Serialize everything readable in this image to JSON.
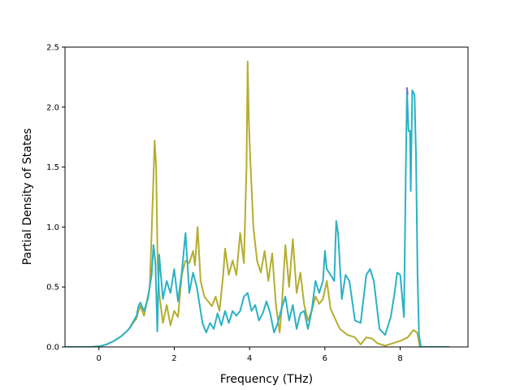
{
  "chart_data": {
    "type": "line",
    "title": "",
    "xlabel": "Frequency (THz)",
    "ylabel": "Partial Density of States",
    "xlim": [
      -0.9,
      9.8
    ],
    "ylim": [
      0.0,
      2.5
    ],
    "xticks": [
      0,
      2,
      4,
      6,
      8
    ],
    "yticks": [
      0.0,
      0.5,
      1.0,
      1.5,
      2.0,
      2.5
    ],
    "xtick_labels": [
      "0",
      "2",
      "4",
      "6",
      "8"
    ],
    "ytick_labels": [
      "0.0",
      "0.5",
      "1.0",
      "1.5",
      "2.0",
      "2.5"
    ],
    "grid": false,
    "legend": "none",
    "series": [
      {
        "color": "#b5ad2f",
        "points": [
          [
            -0.9,
            0.0
          ],
          [
            -0.2,
            0.0
          ],
          [
            0.0,
            0.005
          ],
          [
            0.2,
            0.02
          ],
          [
            0.4,
            0.05
          ],
          [
            0.6,
            0.09
          ],
          [
            0.8,
            0.15
          ],
          [
            1.0,
            0.24
          ],
          [
            1.05,
            0.3
          ],
          [
            1.1,
            0.34
          ],
          [
            1.2,
            0.26
          ],
          [
            1.3,
            0.42
          ],
          [
            1.35,
            0.5
          ],
          [
            1.4,
            0.95
          ],
          [
            1.45,
            1.42
          ],
          [
            1.48,
            1.72
          ],
          [
            1.52,
            1.5
          ],
          [
            1.56,
            0.7
          ],
          [
            1.6,
            0.45
          ],
          [
            1.7,
            0.2
          ],
          [
            1.8,
            0.35
          ],
          [
            1.9,
            0.18
          ],
          [
            2.0,
            0.3
          ],
          [
            2.1,
            0.25
          ],
          [
            2.2,
            0.6
          ],
          [
            2.3,
            0.72
          ],
          [
            2.4,
            0.7
          ],
          [
            2.5,
            0.8
          ],
          [
            2.55,
            0.68
          ],
          [
            2.62,
            1.0
          ],
          [
            2.7,
            0.55
          ],
          [
            2.8,
            0.42
          ],
          [
            2.9,
            0.38
          ],
          [
            3.0,
            0.34
          ],
          [
            3.1,
            0.42
          ],
          [
            3.2,
            0.3
          ],
          [
            3.3,
            0.6
          ],
          [
            3.35,
            0.82
          ],
          [
            3.45,
            0.6
          ],
          [
            3.55,
            0.72
          ],
          [
            3.65,
            0.6
          ],
          [
            3.75,
            0.95
          ],
          [
            3.85,
            0.7
          ],
          [
            3.92,
            1.5
          ],
          [
            3.95,
            2.38
          ],
          [
            3.98,
            1.9
          ],
          [
            4.02,
            1.55
          ],
          [
            4.05,
            1.35
          ],
          [
            4.1,
            1.0
          ],
          [
            4.2,
            0.72
          ],
          [
            4.3,
            0.62
          ],
          [
            4.4,
            0.8
          ],
          [
            4.5,
            0.55
          ],
          [
            4.6,
            0.78
          ],
          [
            4.7,
            0.35
          ],
          [
            4.8,
            0.12
          ],
          [
            4.85,
            0.3
          ],
          [
            4.95,
            0.85
          ],
          [
            5.05,
            0.5
          ],
          [
            5.15,
            0.9
          ],
          [
            5.25,
            0.45
          ],
          [
            5.35,
            0.62
          ],
          [
            5.45,
            0.35
          ],
          [
            5.55,
            0.22
          ],
          [
            5.65,
            0.3
          ],
          [
            5.75,
            0.42
          ],
          [
            5.85,
            0.36
          ],
          [
            5.95,
            0.4
          ],
          [
            6.05,
            0.55
          ],
          [
            6.15,
            0.32
          ],
          [
            6.25,
            0.25
          ],
          [
            6.4,
            0.15
          ],
          [
            6.6,
            0.1
          ],
          [
            6.8,
            0.08
          ],
          [
            6.95,
            0.02
          ],
          [
            7.1,
            0.08
          ],
          [
            7.25,
            0.07
          ],
          [
            7.4,
            0.03
          ],
          [
            7.6,
            0.01
          ],
          [
            7.8,
            0.03
          ],
          [
            8.0,
            0.05
          ],
          [
            8.2,
            0.08
          ],
          [
            8.35,
            0.14
          ],
          [
            8.45,
            0.12
          ],
          [
            8.52,
            0.0
          ],
          [
            9.3,
            0.0
          ]
        ]
      },
      {
        "color": "#2ab1c4",
        "points": [
          [
            -0.9,
            0.0
          ],
          [
            -0.2,
            0.0
          ],
          [
            0.0,
            0.005
          ],
          [
            0.2,
            0.02
          ],
          [
            0.4,
            0.05
          ],
          [
            0.6,
            0.09
          ],
          [
            0.8,
            0.15
          ],
          [
            1.0,
            0.26
          ],
          [
            1.05,
            0.34
          ],
          [
            1.1,
            0.37
          ],
          [
            1.2,
            0.3
          ],
          [
            1.3,
            0.4
          ],
          [
            1.4,
            0.6
          ],
          [
            1.45,
            0.85
          ],
          [
            1.5,
            0.7
          ],
          [
            1.55,
            0.13
          ],
          [
            1.6,
            0.77
          ],
          [
            1.7,
            0.4
          ],
          [
            1.8,
            0.55
          ],
          [
            1.9,
            0.45
          ],
          [
            2.0,
            0.65
          ],
          [
            2.1,
            0.38
          ],
          [
            2.2,
            0.62
          ],
          [
            2.3,
            0.95
          ],
          [
            2.4,
            0.45
          ],
          [
            2.5,
            0.62
          ],
          [
            2.6,
            0.5
          ],
          [
            2.7,
            0.3
          ],
          [
            2.75,
            0.2
          ],
          [
            2.85,
            0.12
          ],
          [
            2.95,
            0.2
          ],
          [
            3.05,
            0.15
          ],
          [
            3.15,
            0.28
          ],
          [
            3.25,
            0.18
          ],
          [
            3.35,
            0.3
          ],
          [
            3.45,
            0.2
          ],
          [
            3.55,
            0.3
          ],
          [
            3.65,
            0.26
          ],
          [
            3.75,
            0.3
          ],
          [
            3.85,
            0.42
          ],
          [
            3.95,
            0.45
          ],
          [
            4.05,
            0.3
          ],
          [
            4.15,
            0.35
          ],
          [
            4.25,
            0.22
          ],
          [
            4.35,
            0.28
          ],
          [
            4.45,
            0.38
          ],
          [
            4.55,
            0.28
          ],
          [
            4.65,
            0.12
          ],
          [
            4.75,
            0.2
          ],
          [
            4.85,
            0.32
          ],
          [
            4.95,
            0.42
          ],
          [
            5.05,
            0.22
          ],
          [
            5.15,
            0.35
          ],
          [
            5.25,
            0.15
          ],
          [
            5.35,
            0.28
          ],
          [
            5.45,
            0.3
          ],
          [
            5.55,
            0.15
          ],
          [
            5.65,
            0.3
          ],
          [
            5.75,
            0.55
          ],
          [
            5.85,
            0.45
          ],
          [
            5.95,
            0.55
          ],
          [
            6.0,
            0.8
          ],
          [
            6.05,
            0.65
          ],
          [
            6.15,
            0.6
          ],
          [
            6.25,
            0.55
          ],
          [
            6.3,
            1.05
          ],
          [
            6.35,
            0.95
          ],
          [
            6.45,
            0.4
          ],
          [
            6.55,
            0.6
          ],
          [
            6.65,
            0.55
          ],
          [
            6.8,
            0.22
          ],
          [
            6.95,
            0.2
          ],
          [
            7.1,
            0.6
          ],
          [
            7.2,
            0.65
          ],
          [
            7.3,
            0.55
          ],
          [
            7.45,
            0.15
          ],
          [
            7.6,
            0.1
          ],
          [
            7.75,
            0.25
          ],
          [
            7.85,
            0.45
          ],
          [
            7.92,
            0.62
          ],
          [
            8.0,
            0.6
          ],
          [
            8.1,
            0.25
          ],
          [
            8.15,
            1.5
          ],
          [
            8.18,
            2.14
          ],
          [
            8.22,
            1.8
          ],
          [
            8.26,
            1.8
          ],
          [
            8.28,
            1.3
          ],
          [
            8.32,
            2.14
          ],
          [
            8.38,
            2.1
          ],
          [
            8.42,
            1.6
          ],
          [
            8.46,
            0.6
          ],
          [
            8.5,
            0.1
          ],
          [
            8.55,
            0.0
          ],
          [
            9.3,
            0.0
          ]
        ]
      },
      {
        "color": "#9467bd",
        "points": [
          [
            8.16,
            2.15
          ],
          [
            8.18,
            2.16
          ],
          [
            8.2,
            2.1
          ]
        ]
      }
    ]
  }
}
